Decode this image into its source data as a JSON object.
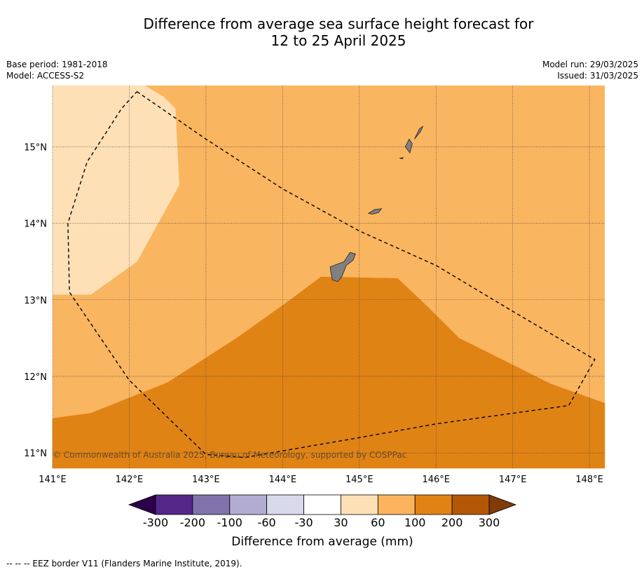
{
  "title_line1": "Difference from average sea surface height forecast for",
  "title_line2": "12 to 25 April 2025",
  "meta_left": [
    "Base period: 1981-2018",
    "Model: ACCESS-S2"
  ],
  "meta_right": [
    "Model run: 29/03/2025",
    "Issued: 31/03/2025"
  ],
  "copyright": "© Commonwealth of Australia 2025, Bureau of Meteorology, supported by COSPPac",
  "footer": "--  --  -- EEZ border V11 (Flanders Marine Institute, 2019).",
  "map": {
    "lon_range": [
      141.0,
      148.2
    ],
    "lat_range": [
      10.8,
      15.8
    ],
    "lon_ticks": [
      141,
      142,
      143,
      144,
      145,
      146,
      147,
      148
    ],
    "lon_labels": [
      "141°E",
      "142°E",
      "143°E",
      "144°E",
      "145°E",
      "146°E",
      "147°E",
      "148°E"
    ],
    "lat_ticks": [
      11,
      12,
      13,
      14,
      15
    ],
    "lat_labels": [
      "11°N",
      "12°N",
      "13°N",
      "14°N",
      "15°N"
    ],
    "land_color": "#808080",
    "regions": [
      {
        "band": "30 to 60",
        "color": "#fde0b6",
        "points": [
          [
            141.0,
            15.8
          ],
          [
            142.2,
            15.8
          ],
          [
            142.45,
            15.65
          ],
          [
            142.6,
            15.5
          ],
          [
            142.65,
            14.5
          ],
          [
            142.1,
            13.5
          ],
          [
            141.5,
            13.07
          ],
          [
            141.0,
            13.07
          ]
        ]
      },
      {
        "band": "100 to 200",
        "color": "#e08315",
        "points": [
          [
            141.0,
            11.45
          ],
          [
            141.5,
            11.52
          ],
          [
            142.5,
            11.92
          ],
          [
            143.4,
            12.5
          ],
          [
            144.1,
            13.0
          ],
          [
            144.5,
            13.3
          ],
          [
            145.5,
            13.28
          ],
          [
            145.9,
            12.9
          ],
          [
            146.3,
            12.5
          ],
          [
            146.6,
            12.35
          ],
          [
            147.5,
            11.9
          ],
          [
            148.2,
            11.65
          ],
          [
            148.2,
            10.8
          ],
          [
            141.0,
            10.8
          ]
        ]
      }
    ],
    "islands": [
      {
        "name": "Guam",
        "points": [
          [
            144.62,
            13.43
          ],
          [
            144.8,
            13.5
          ],
          [
            144.88,
            13.62
          ],
          [
            144.95,
            13.6
          ],
          [
            144.92,
            13.52
          ],
          [
            144.83,
            13.45
          ],
          [
            144.77,
            13.3
          ],
          [
            144.72,
            13.24
          ],
          [
            144.65,
            13.26
          ],
          [
            144.63,
            13.35
          ]
        ]
      },
      {
        "name": "Rota",
        "points": [
          [
            145.12,
            14.13
          ],
          [
            145.2,
            14.18
          ],
          [
            145.29,
            14.19
          ],
          [
            145.25,
            14.14
          ],
          [
            145.17,
            14.12
          ]
        ]
      },
      {
        "name": "Aguijan",
        "points": [
          [
            145.53,
            14.85
          ],
          [
            145.57,
            14.86
          ],
          [
            145.56,
            14.84
          ]
        ]
      },
      {
        "name": "Tinian",
        "points": [
          [
            145.6,
            15.0
          ],
          [
            145.65,
            15.1
          ],
          [
            145.69,
            15.04
          ],
          [
            145.66,
            14.92
          ]
        ]
      },
      {
        "name": "Saipan",
        "points": [
          [
            145.72,
            15.1
          ],
          [
            145.78,
            15.23
          ],
          [
            145.83,
            15.27
          ],
          [
            145.8,
            15.2
          ],
          [
            145.75,
            15.14
          ]
        ]
      }
    ],
    "eez": [
      [
        142.1,
        15.72
      ],
      [
        143.0,
        15.1
      ],
      [
        144.0,
        14.45
      ],
      [
        145.0,
        13.9
      ],
      [
        146.0,
        13.45
      ],
      [
        147.0,
        12.85
      ],
      [
        148.07,
        12.22
      ],
      [
        147.73,
        11.62
      ],
      [
        146.0,
        11.38
      ],
      [
        145.0,
        11.2
      ],
      [
        143.5,
        10.94
      ],
      [
        143.0,
        10.98
      ],
      [
        142.0,
        11.95
      ],
      [
        141.22,
        13.1
      ],
      [
        141.2,
        14.0
      ],
      [
        141.45,
        14.8
      ],
      [
        141.9,
        15.5
      ],
      [
        142.1,
        15.72
      ]
    ]
  },
  "colorbar": {
    "label": "Difference from average (mm)",
    "ticks": [
      "-300",
      "-200",
      "-100",
      "-60",
      "-30",
      "30",
      "60",
      "100",
      "200",
      "300"
    ],
    "colors": [
      "#542788",
      "#8073ac",
      "#b2abd2",
      "#d8daeb",
      "#ffffff",
      "#fee0b6",
      "#fbb35e",
      "#e08214",
      "#b35806"
    ],
    "under_color": "#2d004b",
    "over_color": "#7f3b08"
  }
}
